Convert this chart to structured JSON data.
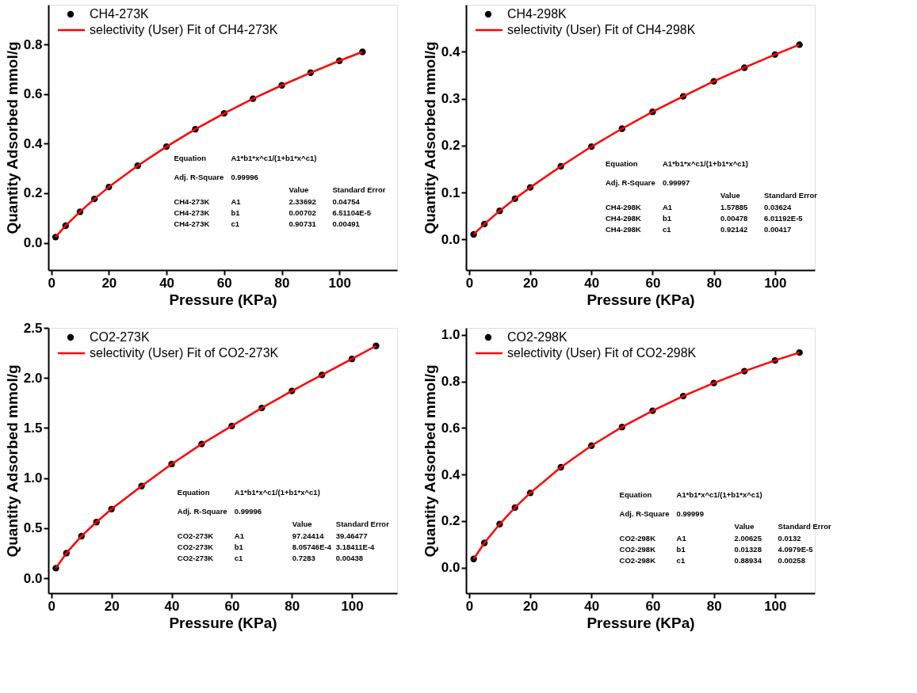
{
  "chart_data": [
    {
      "type": "scatter",
      "xlabel": "Pressure (KPa)",
      "ylabel": "Quantity Adsorbed mmol/g",
      "marker": "circle",
      "grid": false,
      "legend": "top left",
      "x": [
        1.5,
        5,
        10,
        15,
        20,
        30,
        40,
        50,
        60,
        70,
        80,
        90,
        100,
        108
      ],
      "xlim": [
        -1,
        120
      ],
      "xticks": [
        0,
        20,
        40,
        60,
        80,
        100
      ],
      "ylim": [
        -0.11,
        0.96
      ],
      "yticks": [
        {
          "value": 0,
          "label": "0.0"
        },
        0.2,
        0.4,
        0.6,
        0.8
      ],
      "series": [
        {
          "name": "CH4-273K",
          "color": "#000000",
          "values": [
            0.023,
            0.069,
            0.125,
            0.177,
            0.225,
            0.311,
            0.388,
            0.458,
            0.522,
            0.581,
            0.635,
            0.686,
            0.734,
            0.77
          ]
        },
        {
          "name": "selectivity (User) Fit of CH4-273K",
          "type": "line",
          "marker": "none",
          "color": "#ff0000",
          "values": [
            0.023,
            0.069,
            0.125,
            0.177,
            0.225,
            0.311,
            0.388,
            0.458,
            0.522,
            0.581,
            0.635,
            0.686,
            0.734,
            0.77
          ]
        }
      ],
      "annotations": [
        "Equation",
        "A1*b1*x^c1/(1+b1*x^c1)",
        "Adj. R-Square",
        "0.99996",
        "Value",
        "Standard Error",
        "CH4-273K",
        "A1",
        "2.33692",
        "0.04754",
        "CH4-273K",
        "b1",
        "0.00702",
        "6.51104E-5",
        "CH4-273K",
        "c1",
        "0.90731",
        "0.00491"
      ]
    },
    {
      "type": "scatter",
      "xlabel": "Pressure (KPa)",
      "ylabel": "Quantity Adsorbed mmol/g",
      "marker": "circle",
      "grid": false,
      "legend": "top left",
      "x": [
        1.5,
        5,
        10,
        15,
        20,
        30,
        40,
        50,
        60,
        70,
        80,
        90,
        100,
        108
      ],
      "xlim": [
        -1,
        113
      ],
      "xticks": [
        0,
        20,
        40,
        60,
        80,
        100
      ],
      "ylim": [
        -0.065,
        0.5
      ],
      "yticks": [
        {
          "value": 0,
          "label": "0.0"
        },
        0.1,
        0.2,
        0.3,
        0.4
      ],
      "series": [
        {
          "name": "CH4-298K",
          "color": "#000000",
          "values": [
            0.011,
            0.033,
            0.061,
            0.087,
            0.111,
            0.156,
            0.198,
            0.236,
            0.272,
            0.305,
            0.337,
            0.366,
            0.394,
            0.415
          ]
        },
        {
          "name": "selectivity (User) Fit of CH4-298K",
          "type": "line",
          "marker": "none",
          "color": "#ff0000",
          "values": [
            0.011,
            0.033,
            0.061,
            0.087,
            0.111,
            0.156,
            0.198,
            0.236,
            0.272,
            0.305,
            0.337,
            0.366,
            0.394,
            0.415
          ]
        }
      ],
      "annotations": [
        "Equation",
        "A1*b1*x^c1/(1+b1*x^c1)",
        "Adj. R-Square",
        "0.99997",
        "Value",
        "Standard Error",
        "CH4-298K",
        "A1",
        "1.57885",
        "0.03624",
        "CH4-298K",
        "b1",
        "0.00478",
        "6.01192E-5",
        "CH4-298K",
        "c1",
        "0.92142",
        "0.00417"
      ]
    },
    {
      "type": "scatter",
      "xlabel": "Pressure (KPa)",
      "ylabel": "Quantity Adsorbed mmol/g",
      "marker": "circle",
      "grid": false,
      "legend": "top left",
      "x": [
        1.5,
        5,
        10,
        15,
        20,
        30,
        40,
        50,
        60,
        70,
        80,
        90,
        100,
        108
      ],
      "xlim": [
        -1,
        115
      ],
      "xticks": [
        0,
        20,
        40,
        60,
        80,
        100
      ],
      "ylim": [
        -0.15,
        2.5
      ],
      "yticks": [
        {
          "value": 0,
          "label": "0.0"
        },
        0.5,
        {
          "value": 1,
          "label": "1.0"
        },
        1.5,
        {
          "value": 2,
          "label": "2.0"
        },
        2.5
      ],
      "series": [
        {
          "name": "CO2-273K",
          "color": "#000000",
          "values": [
            0.1,
            0.25,
            0.42,
            0.56,
            0.69,
            0.92,
            1.14,
            1.34,
            1.52,
            1.7,
            1.87,
            2.03,
            2.19,
            2.32
          ]
        },
        {
          "name": "selectivity (User) Fit of CO2-273K",
          "type": "line",
          "marker": "none",
          "color": "#ff0000",
          "values": [
            0.1,
            0.25,
            0.42,
            0.56,
            0.69,
            0.92,
            1.14,
            1.34,
            1.52,
            1.7,
            1.87,
            2.03,
            2.19,
            2.32
          ]
        }
      ],
      "annotations": [
        "Equation",
        "A1*b1*x^c1/(1+b1*x^c1)",
        "Adj. R-Square",
        "0.99996",
        "Value",
        "Standard Error",
        "CO2-273K",
        "A1",
        "97.24414",
        "39.46477",
        "CO2-273K",
        "b1",
        "8.05746E-4",
        "3.18411E-4",
        "CO2-273K",
        "c1",
        "0.7283",
        "0.00438"
      ]
    },
    {
      "type": "scatter",
      "xlabel": "Pressure (KPa)",
      "ylabel": "Quantity Adsorbed mmol/g",
      "marker": "circle",
      "grid": false,
      "legend": "top left",
      "x": [
        1.5,
        5,
        10,
        15,
        20,
        30,
        40,
        50,
        60,
        70,
        80,
        90,
        100,
        108
      ],
      "xlim": [
        -1,
        113
      ],
      "xticks": [
        0,
        20,
        40,
        60,
        80,
        100
      ],
      "ylim": [
        -0.11,
        1.03
      ],
      "yticks": [
        {
          "value": 0,
          "label": "0.0"
        },
        0.2,
        0.4,
        0.6,
        0.8,
        {
          "value": 1,
          "label": "1.0"
        }
      ],
      "series": [
        {
          "name": "CO2-298K",
          "color": "#000000",
          "values": [
            0.037,
            0.106,
            0.187,
            0.258,
            0.321,
            0.431,
            0.524,
            0.604,
            0.674,
            0.737,
            0.793,
            0.844,
            0.89,
            0.924
          ]
        },
        {
          "name": "selectivity (User) Fit of CO2-298K",
          "type": "line",
          "marker": "none",
          "color": "#ff0000",
          "values": [
            0.037,
            0.106,
            0.187,
            0.258,
            0.321,
            0.431,
            0.524,
            0.604,
            0.674,
            0.737,
            0.793,
            0.844,
            0.89,
            0.924
          ]
        }
      ],
      "annotations": [
        "Equation",
        "A1*b1*x^c1/(1+b1*x^c1)",
        "Adj. R-Square",
        "0.99999",
        "Value",
        "Standard Error",
        "CO2-298K",
        "A1",
        "2.00625",
        "0.0132",
        "CO2-298K",
        "b1",
        "0.01328",
        "4.0979E-5",
        "CO2-298K",
        "c1",
        "0.88934",
        "0.00258"
      ]
    }
  ]
}
